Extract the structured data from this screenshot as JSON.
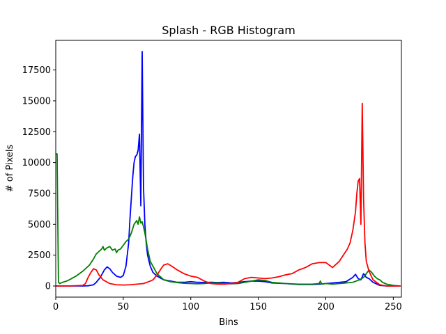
{
  "chart_data": {
    "type": "line",
    "title": "Splash - RGB Histogram",
    "xlabel": "Bins",
    "ylabel": "# of Pixels",
    "xlim": [
      0,
      256
    ],
    "ylim": [
      -900,
      19900
    ],
    "grid": false,
    "legend": "none",
    "xticks": [
      0,
      50,
      100,
      150,
      200,
      250
    ],
    "yticks": [
      0,
      2500,
      5000,
      7500,
      10000,
      12500,
      15000,
      17500
    ],
    "series": [
      {
        "color": "#0000ff",
        "x": [
          0,
          10,
          20,
          24,
          28,
          30,
          33,
          36,
          38,
          40,
          42,
          45,
          48,
          50,
          52,
          54,
          55,
          57,
          58,
          59,
          60,
          61,
          62,
          63,
          64,
          65,
          66,
          67,
          68,
          70,
          72,
          75,
          80,
          85,
          90,
          95,
          100,
          105,
          110,
          115,
          120,
          125,
          130,
          135,
          140,
          145,
          150,
          155,
          160,
          170,
          180,
          190,
          195,
          200,
          205,
          210,
          215,
          220,
          222,
          224,
          226,
          228,
          230,
          232,
          235,
          238,
          240,
          245,
          250,
          255
        ],
        "values": [
          0,
          0,
          0,
          20,
          100,
          300,
          700,
          1300,
          1550,
          1400,
          1100,
          800,
          700,
          850,
          1600,
          3500,
          5500,
          8800,
          10000,
          10500,
          10600,
          11000,
          12300,
          6500,
          19000,
          8000,
          5000,
          3500,
          2500,
          1600,
          1100,
          800,
          500,
          400,
          300,
          300,
          350,
          300,
          280,
          300,
          280,
          300,
          250,
          300,
          350,
          400,
          400,
          350,
          250,
          200,
          120,
          120,
          150,
          200,
          250,
          300,
          350,
          700,
          950,
          600,
          500,
          1000,
          700,
          600,
          300,
          150,
          50,
          0,
          0,
          0
        ]
      },
      {
        "color": "#008000",
        "x": [
          0,
          1,
          2,
          3,
          5,
          8,
          10,
          15,
          20,
          25,
          28,
          30,
          32,
          34,
          35,
          36,
          38,
          40,
          42,
          44,
          45,
          46,
          48,
          50,
          52,
          54,
          56,
          58,
          60,
          61,
          62,
          63,
          64,
          65,
          66,
          68,
          70,
          75,
          80,
          85,
          90,
          95,
          100,
          105,
          110,
          115,
          120,
          125,
          130,
          135,
          140,
          145,
          150,
          155,
          160,
          170,
          180,
          190,
          195,
          196,
          197,
          200,
          205,
          210,
          215,
          220,
          225,
          228,
          230,
          232,
          234,
          236,
          238,
          240,
          242,
          245,
          250,
          255
        ],
        "values": [
          10700,
          10700,
          300,
          200,
          300,
          400,
          500,
          800,
          1200,
          1700,
          2200,
          2600,
          2800,
          3000,
          3200,
          2900,
          3100,
          3200,
          2900,
          3000,
          2700,
          2900,
          3000,
          3300,
          3600,
          3800,
          4300,
          5000,
          5300,
          5000,
          5600,
          5100,
          5200,
          4800,
          4300,
          3000,
          2000,
          1000,
          500,
          350,
          280,
          220,
          200,
          180,
          200,
          250,
          250,
          200,
          180,
          200,
          300,
          400,
          500,
          450,
          300,
          200,
          150,
          150,
          200,
          400,
          150,
          200,
          150,
          200,
          250,
          300,
          500,
          700,
          1000,
          1300,
          1100,
          800,
          600,
          500,
          300,
          150,
          50,
          0
        ]
      },
      {
        "color": "#ff0000",
        "x": [
          0,
          10,
          20,
          22,
          24,
          26,
          28,
          30,
          32,
          35,
          40,
          45,
          50,
          55,
          60,
          65,
          70,
          72,
          75,
          78,
          80,
          83,
          86,
          90,
          95,
          100,
          105,
          110,
          115,
          120,
          125,
          130,
          135,
          140,
          145,
          150,
          155,
          160,
          165,
          170,
          175,
          180,
          185,
          190,
          195,
          200,
          205,
          210,
          213,
          216,
          218,
          220,
          222,
          223,
          224,
          225,
          226,
          227,
          228,
          229,
          230,
          232,
          235,
          240,
          245,
          250,
          255
        ],
        "values": [
          0,
          0,
          50,
          200,
          700,
          1100,
          1400,
          1300,
          900,
          500,
          200,
          100,
          80,
          100,
          150,
          200,
          400,
          500,
          900,
          1400,
          1700,
          1800,
          1600,
          1300,
          1000,
          800,
          700,
          400,
          200,
          150,
          150,
          200,
          300,
          600,
          700,
          650,
          600,
          650,
          750,
          900,
          1000,
          1300,
          1500,
          1800,
          1900,
          1900,
          1500,
          2000,
          2500,
          3000,
          3500,
          4500,
          6000,
          7500,
          8500,
          8700,
          5000,
          14800,
          7000,
          3500,
          2000,
          1200,
          500,
          100,
          0,
          0,
          0
        ]
      }
    ]
  }
}
